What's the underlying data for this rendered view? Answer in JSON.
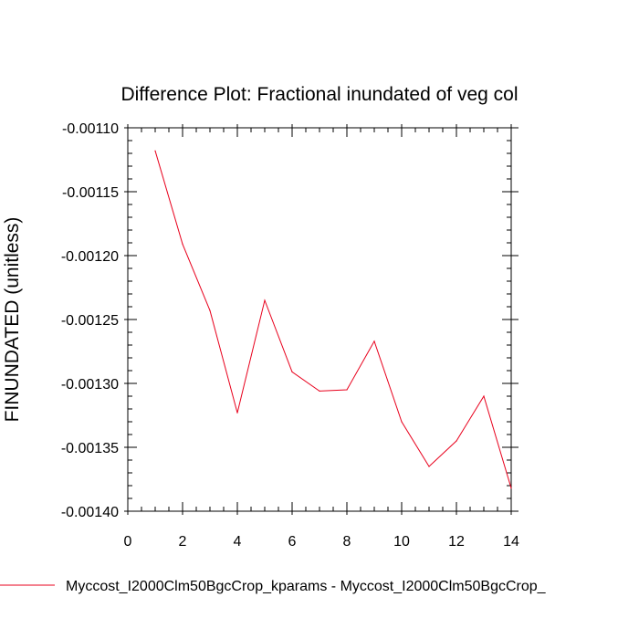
{
  "chart_data": {
    "type": "line",
    "title": "Difference Plot: Fractional inundated of veg col",
    "xlabel": "",
    "ylabel": "FINUNDATED  (unitless)",
    "xlim": [
      0,
      14
    ],
    "ylim": [
      -0.0014,
      -0.0011
    ],
    "x_ticks": [
      0,
      2,
      4,
      6,
      8,
      10,
      12,
      14
    ],
    "x_tick_labels": [
      "0",
      "2",
      "4",
      "6",
      "8",
      "10",
      "12",
      "14"
    ],
    "y_ticks": [
      -0.0011,
      -0.00115,
      -0.0012,
      -0.00125,
      -0.0013,
      -0.00135,
      -0.0014
    ],
    "y_tick_labels": [
      "-0.00110",
      "-0.00115",
      "-0.00120",
      "-0.00125",
      "-0.00130",
      "-0.00135",
      "-0.00140"
    ],
    "grid": false,
    "series": [
      {
        "name": "Myccost_I2000Clm50BgcCrop_kparams - Myccost_I2000Clm50BgcCrop_",
        "color": "#e8001c",
        "x": [
          1,
          2,
          3,
          4,
          5,
          6,
          7,
          8,
          9,
          10,
          11,
          12,
          13,
          14
        ],
        "values": [
          -0.001118,
          -0.001191,
          -0.001243,
          -0.001323,
          -0.001235,
          -0.001291,
          -0.001306,
          -0.001305,
          -0.001267,
          -0.00133,
          -0.001365,
          -0.001345,
          -0.00131,
          -0.001382
        ]
      }
    ],
    "legend": {
      "placement": "bottom-left",
      "entries": [
        "Myccost_I2000Clm50BgcCrop_kparams - Myccost_I2000Clm50BgcCrop_"
      ]
    }
  }
}
